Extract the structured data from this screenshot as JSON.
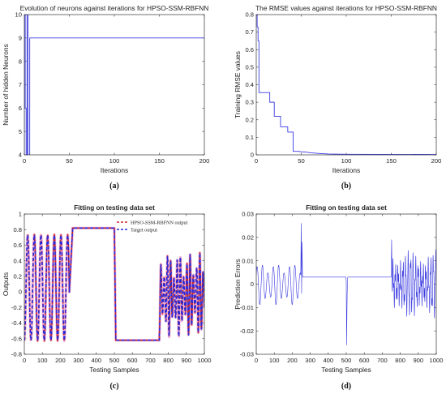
{
  "chart_data": [
    {
      "panel": "a",
      "type": "line",
      "title": "Evolution of neurons against iterations for HPSO-SSM-RBFNN",
      "xlabel": "Iterations",
      "ylabel": "Number of hidden Neurons",
      "xlim": [
        0,
        200
      ],
      "ylim": [
        4,
        10
      ],
      "xticks": [
        0,
        50,
        100,
        150,
        200
      ],
      "yticks": [
        4,
        5,
        6,
        7,
        8,
        9,
        10
      ],
      "grid": false,
      "caption": "(a)",
      "color": "#3a3ae0",
      "series": [
        {
          "x": [
            0,
            0,
            1,
            1,
            2,
            2,
            3,
            3,
            4,
            4,
            6,
            6,
            200
          ],
          "y": [
            4,
            10,
            10,
            6,
            6,
            4,
            4,
            10,
            10,
            4,
            4,
            9,
            9
          ]
        }
      ]
    },
    {
      "panel": "b",
      "type": "line",
      "title": "The RMSE values against iterations for HPSO-SSM-RBFNN",
      "xlabel": "Iterations",
      "ylabel": "Training RMSE values",
      "xlim": [
        0,
        200
      ],
      "ylim": [
        0,
        0.8
      ],
      "xticks": [
        0,
        50,
        100,
        150,
        200
      ],
      "yticks": [
        0,
        0.1,
        0.2,
        0.3,
        0.4,
        0.5,
        0.6,
        0.7,
        0.8
      ],
      "grid": false,
      "caption": "(b)",
      "color": "#3a3ae0",
      "series": [
        {
          "x": [
            0,
            1,
            1,
            2,
            2,
            3,
            3,
            15,
            15,
            20,
            20,
            27,
            27,
            35,
            35,
            41,
            41,
            48,
            48,
            55,
            60,
            70,
            80,
            100,
            200
          ],
          "y": [
            0.8,
            0.8,
            0.73,
            0.73,
            0.65,
            0.65,
            0.355,
            0.355,
            0.3,
            0.3,
            0.22,
            0.22,
            0.16,
            0.16,
            0.13,
            0.13,
            0.02,
            0.02,
            0.018,
            0.016,
            0.012,
            0.008,
            0.005,
            0.003,
            0.002
          ]
        }
      ]
    },
    {
      "panel": "c",
      "type": "line",
      "title": "Fitting on testing data set",
      "xlabel": "Testing Samples",
      "ylabel": "Outputs",
      "xlim": [
        0,
        1000
      ],
      "ylim": [
        -0.8,
        1.0
      ],
      "xticks": [
        0,
        100,
        200,
        300,
        400,
        500,
        600,
        700,
        800,
        900,
        1000
      ],
      "yticks": [
        -0.8,
        -0.6,
        -0.4,
        -0.2,
        0,
        0.2,
        0.4,
        0.6,
        0.8,
        1
      ],
      "grid": false,
      "caption": "(c)",
      "legend_position": "top-right",
      "series": [
        {
          "name": "HPSO-SSM-RBFNN output",
          "color": "#c8282c",
          "style": "dashed"
        },
        {
          "name": "Target output",
          "color": "#2a2ad8",
          "style": "dashed"
        }
      ],
      "segments": [
        {
          "x_start": 0,
          "x_end": 250,
          "kind": "oscillation",
          "period": 37,
          "min": -0.62,
          "max": 0.73
        },
        {
          "x_start": 250,
          "x_end": 268,
          "kind": "ramp",
          "from": 0.0,
          "to": 0.8
        },
        {
          "x_start": 268,
          "x_end": 500,
          "kind": "constant",
          "value": 0.82
        },
        {
          "x_start": 500,
          "x_end": 508,
          "kind": "ramp",
          "from": 0.82,
          "to": -0.6
        },
        {
          "x_start": 508,
          "x_end": 750,
          "kind": "constant",
          "value": -0.62
        },
        {
          "x_start": 750,
          "x_end": 1000,
          "kind": "oscillation",
          "period": 18,
          "min": -0.57,
          "max": 0.5
        }
      ]
    },
    {
      "panel": "d",
      "type": "line",
      "title": "Fitting on testing data set",
      "xlabel": "Testing Samples",
      "ylabel": "Prediction Errors",
      "xlim": [
        0,
        1000
      ],
      "ylim": [
        -0.03,
        0.03
      ],
      "xticks": [
        0,
        100,
        200,
        300,
        400,
        500,
        600,
        700,
        800,
        900,
        1000
      ],
      "yticks": [
        -0.03,
        -0.02,
        -0.01,
        0,
        0.01,
        0.02,
        0.03
      ],
      "grid": false,
      "caption": "(d)",
      "color": "#3a3ae0",
      "features": [
        {
          "x_start": 0,
          "x_end": 250,
          "kind": "oscillation",
          "period": 30,
          "amplitude": 0.008,
          "offset": 0.0
        },
        {
          "x": 250,
          "kind": "spike",
          "value": 0.026
        },
        {
          "x_start": 260,
          "x_end": 500,
          "kind": "constant",
          "value": 0.003
        },
        {
          "x": 502,
          "kind": "spike",
          "value": -0.026
        },
        {
          "x_start": 510,
          "x_end": 750,
          "kind": "constant",
          "value": 0.003
        },
        {
          "x": 752,
          "kind": "spike",
          "value": 0.019
        },
        {
          "x_start": 755,
          "x_end": 1000,
          "kind": "oscillation",
          "period": 14,
          "amplitude": 0.011,
          "offset": 0.0
        }
      ]
    }
  ]
}
